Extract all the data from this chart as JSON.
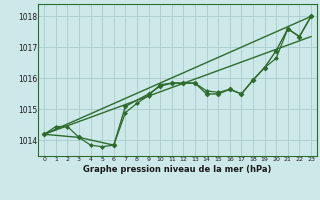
{
  "bg_color": "#cce8e8",
  "grid_color": "#aacccc",
  "line_color": "#2d6b2d",
  "xlabel": "Graphe pression niveau de la mer (hPa)",
  "ylabel_ticks": [
    1014,
    1015,
    1016,
    1017,
    1018
  ],
  "xlim": [
    -0.5,
    23.5
  ],
  "ylim": [
    1013.5,
    1018.4
  ],
  "series": {
    "line_straight": {
      "x": [
        0,
        23
      ],
      "y": [
        1014.2,
        1018.0
      ],
      "marker": null,
      "markersize": 0,
      "linewidth": 1.0
    },
    "line_straight2": {
      "x": [
        0,
        23
      ],
      "y": [
        1014.2,
        1017.35
      ],
      "marker": null,
      "markersize": 0,
      "linewidth": 1.0
    },
    "line_detailed": {
      "x": [
        0,
        1,
        2,
        3,
        4,
        5,
        6,
        7,
        8,
        9,
        10,
        11,
        12,
        13,
        14,
        15,
        16,
        17,
        18,
        19,
        20,
        21,
        22,
        23
      ],
      "y": [
        1014.2,
        1014.45,
        1014.45,
        1014.1,
        1013.85,
        1013.8,
        1013.85,
        1014.9,
        1015.2,
        1015.45,
        1015.8,
        1015.85,
        1015.85,
        1015.85,
        1015.6,
        1015.55,
        1015.65,
        1015.5,
        1015.95,
        1016.35,
        1016.65,
        1017.6,
        1017.35,
        1018.0
      ],
      "marker": "D",
      "markersize": 2.0,
      "linewidth": 0.9
    },
    "line_coarse1": {
      "x": [
        0,
        3,
        6,
        7,
        9,
        10,
        11,
        12,
        13,
        14,
        15,
        16,
        17,
        18,
        19,
        20,
        21,
        22,
        23
      ],
      "y": [
        1014.2,
        1014.1,
        1013.85,
        1015.1,
        1015.5,
        1015.75,
        1015.85,
        1015.85,
        1015.85,
        1015.5,
        1015.5,
        1015.65,
        1015.5,
        1015.95,
        1016.35,
        1016.9,
        1017.6,
        1017.35,
        1018.0
      ],
      "marker": "D",
      "markersize": 2.5,
      "linewidth": 1.0
    }
  }
}
